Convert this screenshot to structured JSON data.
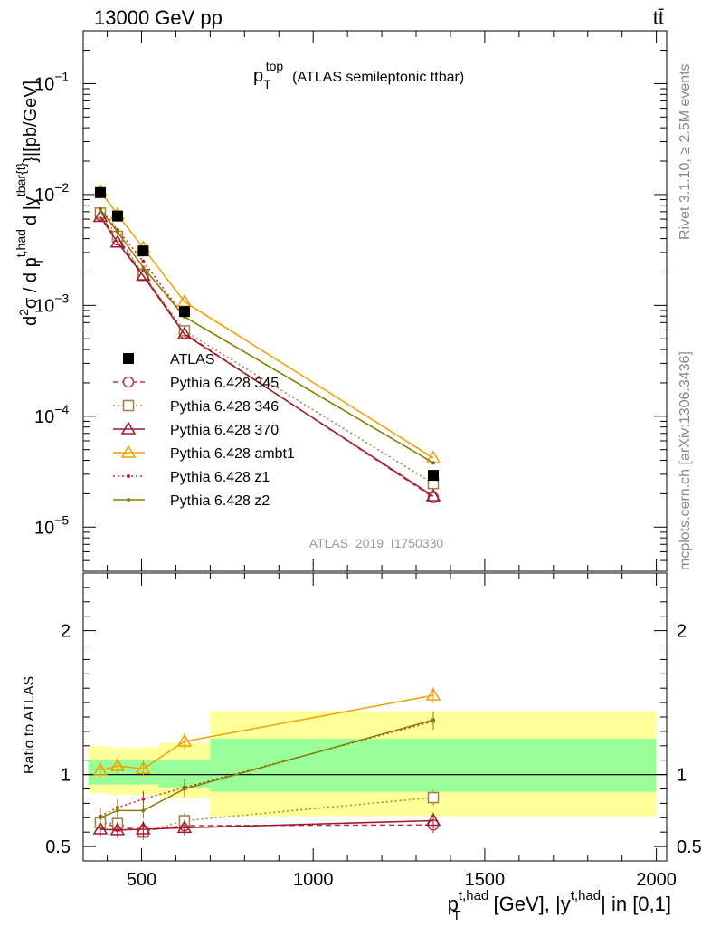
{
  "header": {
    "energy_label": "13000 GeV pp",
    "process_label": "tt̄",
    "watermark": "ATLAS_2019_I1750330",
    "rivet_label": "Rivet 3.1.10, ≥ 2.5M events",
    "mcplots_label": "mcplots.cern.ch [arXiv:1306.3436]"
  },
  "chart_data": [
    {
      "type": "line",
      "panel": "main",
      "title_main": "p",
      "title_sub": "T",
      "title_sup": "top",
      "title_suffix": "(ATLAS semileptonic ttbar)",
      "ylabel": "d²σ / d p_T^{t,had} d |y^{tbar{t}}| [pb/GeV]",
      "ylabel_parts": {
        "a": "d",
        "b": "2",
        "c": "σ  /  d p",
        "d": "t,had",
        "e": "T",
        "f": " d |y",
        "g": "tbar{t}",
        "h": "}|[pb/GeV]"
      },
      "yscale": "log",
      "ylim": [
        4e-06,
        0.3
      ],
      "xlim": [
        330,
        2030
      ],
      "y_tick_labels": [
        {
          "value": 0.1,
          "base": "10",
          "exp": "−1"
        },
        {
          "value": 0.01,
          "base": "10",
          "exp": "−2"
        },
        {
          "value": 0.001,
          "base": "10",
          "exp": "−3"
        },
        {
          "value": 0.0001,
          "base": "10",
          "exp": "−4"
        },
        {
          "value": 1e-05,
          "base": "10",
          "exp": "−5"
        }
      ],
      "x": [
        380,
        430,
        505,
        625,
        1350
      ],
      "data": {
        "name": "ATLAS",
        "values": [
          0.0104,
          0.0064,
          0.0031,
          0.00088,
          2.93e-05
        ]
      },
      "series": [
        {
          "name": "Pythia 6.428 345",
          "color": "#c03040",
          "dash": "6,4",
          "marker": "circle-open",
          "values": [
            0.0065,
            0.0039,
            0.0019,
            0.00056,
            1.85e-05
          ]
        },
        {
          "name": "Pythia 6.428 346",
          "color": "#a08040",
          "dash": "2,3",
          "marker": "square-open",
          "values": [
            0.0068,
            0.0042,
            0.0019,
            0.00059,
            2.47e-05
          ]
        },
        {
          "name": "Pythia 6.428 370",
          "color": "#a01830",
          "dash": "",
          "marker": "triangle-open",
          "values": [
            0.0063,
            0.0037,
            0.00185,
            0.00055,
            1.9e-05
          ]
        },
        {
          "name": "Pythia 6.428 ambt1",
          "color": "#f0a000",
          "dash": "",
          "marker": "triangle-open",
          "values": [
            0.0107,
            0.0066,
            0.0033,
            0.00108,
            4.2e-05
          ]
        },
        {
          "name": "Pythia 6.428 z1",
          "color": "#e02020",
          "dash": "2,3",
          "marker": "dot",
          "values": [
            0.0074,
            0.0048,
            0.0025,
            0.00079,
            3.8e-05
          ]
        },
        {
          "name": "Pythia 6.428 z2",
          "color": "#808000",
          "dash": "",
          "marker": "dot",
          "values": [
            0.0073,
            0.0046,
            0.0022,
            0.00079,
            3.8e-05
          ]
        }
      ]
    },
    {
      "type": "line",
      "panel": "ratio",
      "ylabel": "Ratio to ATLAS",
      "ylim": [
        0.4,
        2.4
      ],
      "xlim": [
        330,
        2030
      ],
      "y_ticks": [
        0.5,
        1,
        2
      ],
      "y_tick_labels": [
        "0.5",
        "1",
        "2"
      ],
      "x_ticks": [
        500,
        1000,
        1500,
        2000
      ],
      "x_tick_labels": [
        "500",
        "1000",
        "1500",
        "2000"
      ],
      "xlabel_parts": {
        "a": "p",
        "b": "t,had",
        "c": "T",
        "d": " [GeV], |y",
        "e": "t,had",
        "f": "| in [0,1]"
      },
      "bands": [
        {
          "x": [
            345,
            400
          ],
          "stat": [
            0.93,
            1.1
          ],
          "total": [
            0.87,
            1.2
          ]
        },
        {
          "x": [
            400,
            460
          ],
          "stat": [
            0.93,
            1.1
          ],
          "total": [
            0.86,
            1.19
          ]
        },
        {
          "x": [
            460,
            550
          ],
          "stat": [
            0.93,
            1.1
          ],
          "total": [
            0.86,
            1.19
          ]
        },
        {
          "x": [
            550,
            700
          ],
          "stat": [
            0.91,
            1.1
          ],
          "total": [
            0.84,
            1.22
          ]
        },
        {
          "x": [
            700,
            2000
          ],
          "stat": [
            0.88,
            1.25
          ],
          "total": [
            0.71,
            1.44
          ]
        }
      ],
      "series": [
        {
          "name": "Pythia 6.428 345",
          "values": [
            0.66,
            0.64,
            0.61,
            0.645,
            0.65
          ]
        },
        {
          "name": "Pythia 6.428 346",
          "values": [
            0.665,
            0.66,
            0.6,
            0.68,
            0.84
          ]
        },
        {
          "name": "Pythia 6.428 370",
          "values": [
            0.62,
            0.615,
            0.62,
            0.63,
            0.68
          ]
        },
        {
          "name": "Pythia 6.428 ambt1",
          "values": [
            1.03,
            1.06,
            1.04,
            1.23,
            1.55
          ]
        },
        {
          "name": "Pythia 6.428 z1",
          "values": [
            0.71,
            0.77,
            0.83,
            0.91,
            1.37
          ]
        },
        {
          "name": "Pythia 6.428 z2",
          "values": [
            0.7,
            0.75,
            0.75,
            0.9,
            1.38
          ]
        }
      ]
    }
  ]
}
